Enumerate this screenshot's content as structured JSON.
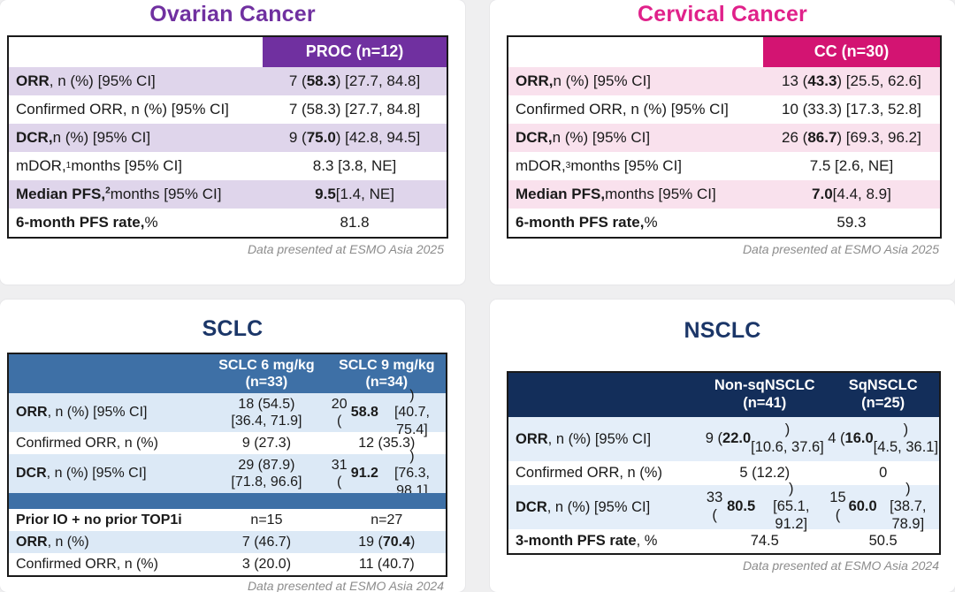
{
  "page": {
    "background_color": "#EFEFF0",
    "text_color": "#1A1A1A"
  },
  "panels": {
    "ovarian": {
      "title": "Ovarian Cancer",
      "theme": {
        "title_color": "#7030A0",
        "header_bg": "#7030A0",
        "header_text": "#FFFFFF",
        "row_shade": "#DFD5EB"
      },
      "table": {
        "columns": [
          "",
          "PROC (n=12)"
        ],
        "rows": [
          {
            "label": "**ORR**, n (%) [95% CI]",
            "value": "7 (**58.3**) [27.7, 84.8]"
          },
          {
            "label": "Confirmed ORR, n (%) [95% CI]",
            "value": "7 (58.3) [27.7, 84.8]"
          },
          {
            "label": "**DCR,** n (%) [95% CI]",
            "value": "9 (**75.0**) [42.8, 94.5]"
          },
          {
            "label": "mDOR,^1^ months [95% CI]",
            "value": "8.3 [3.8, NE]"
          },
          {
            "label": "**Median PFS,^2^** months [95% CI]",
            "value": "**9.5** [1.4, NE]"
          },
          {
            "label": "**6-month PFS rate,** %",
            "value": "81.8"
          }
        ]
      },
      "footnote": "Data presented at ESMO Asia 2025"
    },
    "cervical": {
      "title": "Cervical Cancer",
      "theme": {
        "title_color": "#E0218A",
        "header_bg": "#D31472",
        "header_text": "#FFFFFF",
        "row_shade": "#F9E1ED"
      },
      "table": {
        "columns": [
          "",
          "CC (n=30)"
        ],
        "rows": [
          {
            "label": "**ORR,** n (%) [95% CI]",
            "value": "13 (**43.3**) [25.5, 62.6]"
          },
          {
            "label": "Confirmed ORR, n (%) [95% CI]",
            "value": "10 (33.3) [17.3, 52.8]"
          },
          {
            "label": "**DCR,** n (%) [95% CI]",
            "value": "26 (**86.7**) [69.3, 96.2]"
          },
          {
            "label": "mDOR,^3^ months [95% CI]",
            "value": "7.5 [2.6, NE]"
          },
          {
            "label": "**Median PFS,** months [95% CI]",
            "value": "**7.0** [4.4, 8.9]"
          },
          {
            "label": "**6-month PFS rate,** %",
            "value": "59.3"
          }
        ]
      },
      "footnote": "Data presented at ESMO Asia 2025"
    },
    "sclc": {
      "title": "SCLC",
      "theme": {
        "title_color": "#1B3668",
        "header_bg": "#3E70A6",
        "header_text": "#FFFFFF",
        "row_shade": "#DCE9F6"
      },
      "table": {
        "columns": [
          "",
          "SCLC 6 mg/kg\n(n=33)",
          "SCLC 9 mg/kg\n(n=34)"
        ],
        "rows": [
          {
            "label": "**ORR**, n (%) [95% CI]",
            "values": [
              "18 (54.5)\n[36.4, 71.9]",
              "20 (**58.8**)\n[40.7, 75.4]"
            ]
          },
          {
            "label": "Confirmed ORR, n (%)",
            "values": [
              "9 (27.3)",
              "12 (35.3)"
            ]
          },
          {
            "label": "**DCR**, n (%) [95% CI]",
            "values": [
              "29 (87.9)\n[71.8, 96.6]",
              "31 (**91.2**)\n[76.3, 98.1]"
            ]
          },
          {
            "separator": true
          },
          {
            "label": "**Prior IO + no prior TOP1i**",
            "values": [
              "n=15",
              "n=27"
            ]
          },
          {
            "label": "**ORR**, n (%)",
            "values": [
              "7 (46.7)",
              "19 (**70.4**)"
            ]
          },
          {
            "label": "Confirmed ORR, n (%)",
            "values": [
              "3 (20.0)",
              "11 (40.7)"
            ]
          }
        ]
      },
      "footnote": "Data presented at ESMO Asia 2024"
    },
    "nsclc": {
      "title": "NSCLC",
      "theme": {
        "title_color": "#1B3668",
        "header_bg": "#132E5A",
        "header_text": "#FFFFFF",
        "row_shade": "#E4EEF9"
      },
      "table": {
        "columns": [
          "",
          "Non-sqNSCLC\n(n=41)",
          "SqNSCLC\n(n=25)"
        ],
        "rows": [
          {
            "label": "**ORR**, n (%) [95% CI]",
            "values": [
              "9 (**22.0**)\n[10.6, 37.6]",
              "4 (**16.0**)\n[4.5, 36.1]"
            ]
          },
          {
            "label": "Confirmed ORR, n (%)",
            "values": [
              "5 (12.2)",
              "0"
            ]
          },
          {
            "label": "**DCR**, n (%) [95% CI]",
            "values": [
              "33 (**80.5**)\n[65.1, 91.2]",
              "15 (**60.0**)\n[38.7, 78.9]"
            ]
          },
          {
            "label": "**3-month PFS rate**, %",
            "values": [
              "74.5",
              "50.5"
            ]
          }
        ]
      },
      "footnote": "Data presented at ESMO Asia 2024"
    }
  }
}
